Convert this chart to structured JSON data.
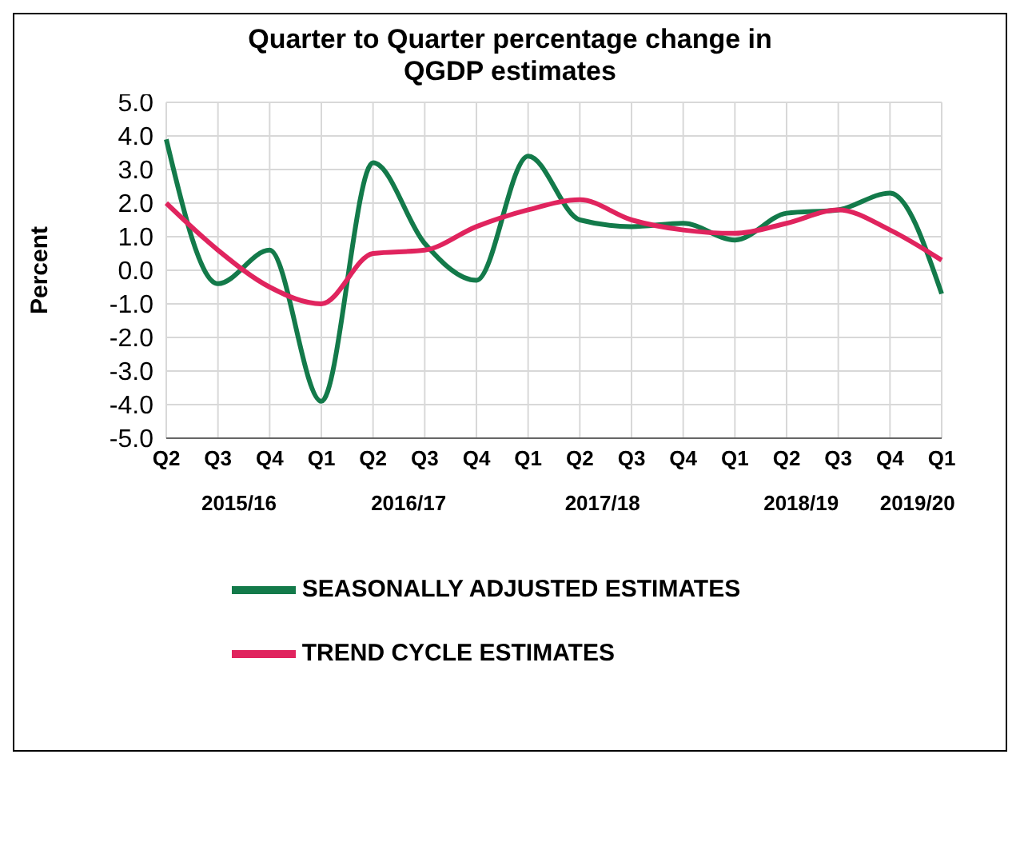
{
  "chart_data": {
    "type": "line",
    "title": "Quarter to Quarter percentage change in QGDP estimates",
    "ylabel": "Percent",
    "categories": [
      "Q2",
      "Q3",
      "Q4",
      "Q1",
      "Q2",
      "Q3",
      "Q4",
      "Q1",
      "Q2",
      "Q3",
      "Q4",
      "Q1",
      "Q2",
      "Q3",
      "Q4",
      "Q1"
    ],
    "series": [
      {
        "name": "SEASONALLY ADJUSTED ESTIMATES",
        "color": "#137a4a",
        "values": [
          3.9,
          -0.4,
          0.6,
          -3.9,
          3.2,
          0.8,
          -0.3,
          3.4,
          1.5,
          1.3,
          1.4,
          0.9,
          1.7,
          1.8,
          2.3,
          -0.7
        ]
      },
      {
        "name": "TREND CYCLE ESTIMATES",
        "color": "#e0245e",
        "values": [
          2.0,
          0.6,
          -0.5,
          -1.0,
          0.5,
          0.6,
          1.3,
          1.8,
          2.1,
          1.5,
          1.2,
          1.1,
          1.4,
          1.8,
          1.2,
          0.3
        ]
      }
    ],
    "annotations": [
      "2015/16",
      "2016/17",
      "2017/18",
      "2018/19",
      "2019/20"
    ],
    "ylim": [
      -5,
      5
    ],
    "yticks": [
      {
        "value": -5,
        "label": "-5.0"
      },
      {
        "value": -4,
        "label": "-4.0"
      },
      {
        "value": -3,
        "label": "-3.0"
      },
      {
        "value": -2,
        "label": "-2.0"
      },
      {
        "value": -1,
        "label": "-1.0"
      },
      {
        "value": 0,
        "label": "0.0"
      },
      {
        "value": 1,
        "label": "1.0"
      },
      {
        "value": 2,
        "label": "2.0"
      },
      {
        "value": 3,
        "label": "3.0"
      },
      {
        "value": 4,
        "label": "4.0"
      },
      {
        "value": 5,
        "label": "5.0"
      }
    ],
    "grid": true,
    "legend": "bottom",
    "marker": "none",
    "line_style": "solid"
  }
}
